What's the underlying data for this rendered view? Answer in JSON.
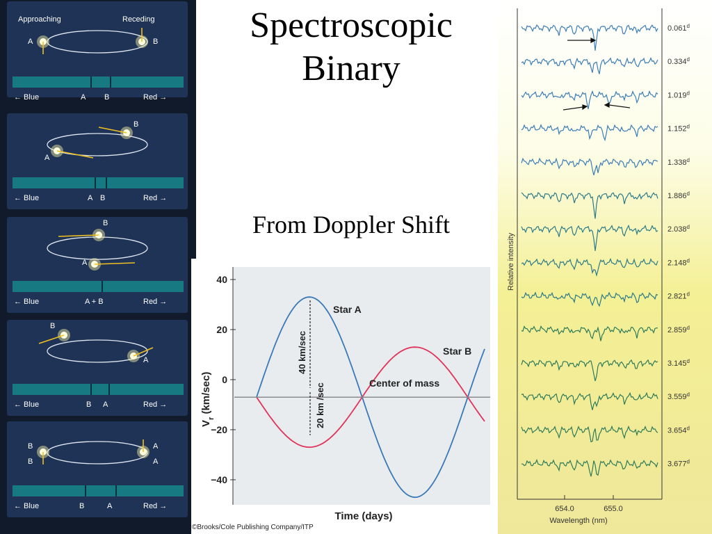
{
  "slide": {
    "title_line1": "Spectroscopic",
    "title_line2": "Binary",
    "subtitle": "From Doppler Shift",
    "credit": "©Brooks/Cole Publishing Company/ITP"
  },
  "orbit_panels": [
    {
      "top_labels": [
        "Approaching",
        "Receding"
      ],
      "star_left": "A",
      "star_right": "B",
      "lines": [
        "A",
        "B"
      ],
      "blue": "Blue",
      "red": "Red"
    },
    {
      "star_top": "B",
      "star_bottom": "A",
      "lines": [
        "A",
        "B"
      ],
      "blue": "Blue",
      "red": "Red"
    },
    {
      "star_top": "B",
      "star_bottom": "A",
      "lines": [
        "A + B"
      ],
      "blue": "Blue",
      "red": "Red"
    },
    {
      "star_top": "B",
      "star_bottom": "A",
      "lines": [
        "B",
        "A"
      ],
      "blue": "Blue",
      "red": "Red"
    },
    {
      "star_left": "B",
      "star_right": "A",
      "lines": [
        "B",
        "A"
      ],
      "blue": "Blue",
      "red": "Red"
    }
  ],
  "chart_data": [
    {
      "type": "line",
      "xlabel": "Time (days)",
      "ylabel": "Vr (km/sec)",
      "ylim": [
        -50,
        45
      ],
      "yticks": [
        "40",
        "20",
        "0",
        "−20",
        "−40"
      ],
      "series": [
        {
          "name": "Star A",
          "color": "#3a78b8",
          "t": [
            0,
            0.25,
            0.5,
            0.75,
            1.0,
            1.08
          ],
          "v": [
            -7,
            33,
            -7,
            -47,
            -7,
            0
          ]
        },
        {
          "name": "Star B",
          "color": "#e0335a",
          "t": [
            0,
            0.25,
            0.5,
            0.75,
            1.0,
            1.08
          ],
          "v": [
            -7,
            -27,
            -7,
            13,
            -7,
            -13
          ]
        },
        {
          "name": "Center of mass",
          "color": "#8a8a8a",
          "t": [
            0,
            1.08
          ],
          "v": [
            -7,
            -7
          ]
        }
      ],
      "annotations": [
        "40 km/sec",
        "20 km /sec"
      ]
    },
    {
      "type": "line",
      "xlabel": "Wavelength (nm)",
      "ylabel": "Relative intensity",
      "xticks": [
        "654.0",
        "655.0"
      ],
      "phase_labels": [
        "0.061",
        "0.334",
        "1.019",
        "1.152",
        "1.338",
        "1.886",
        "2.038",
        "2.148",
        "2.821",
        "2.859",
        "3.145",
        "3.559",
        "3.654",
        "3.677"
      ],
      "phase_unit": "d"
    }
  ]
}
